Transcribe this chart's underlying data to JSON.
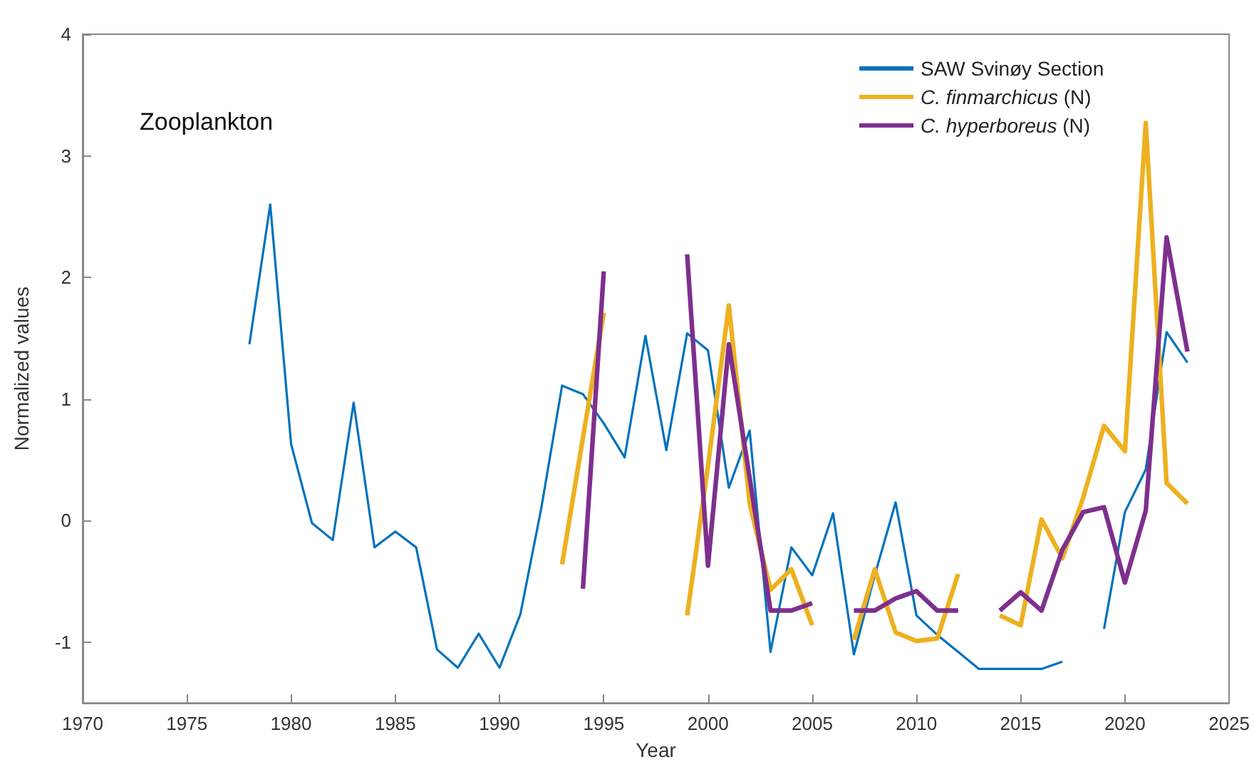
{
  "chart_data": {
    "type": "line",
    "title": "Zooplankton",
    "xlabel": "Year",
    "ylabel": "Normalized values",
    "x": [
      1978,
      1979,
      1980,
      1981,
      1982,
      1983,
      1984,
      1985,
      1986,
      1987,
      1988,
      1989,
      1990,
      1991,
      1992,
      1993,
      1994,
      1995,
      1996,
      1997,
      1998,
      1999,
      2000,
      2001,
      2002,
      2003,
      2004,
      2005,
      2006,
      2007,
      2008,
      2009,
      2010,
      2011,
      2012,
      2013,
      2014,
      2015,
      2016,
      2017,
      2018,
      2019,
      2020,
      2021,
      2022,
      2023
    ],
    "series": [
      {
        "name": "SAW Svinøy Section",
        "color": "#0072bd",
        "values": [
          1.45,
          2.6,
          0.63,
          -0.02,
          -0.16,
          0.97,
          -0.22,
          -0.09,
          -0.22,
          -1.06,
          -1.21,
          -0.93,
          -1.21,
          -0.77,
          0.1,
          1.11,
          1.04,
          0.8,
          0.52,
          1.52,
          0.58,
          1.54,
          1.4,
          0.27,
          0.74,
          -1.08,
          -0.22,
          -0.45,
          0.06,
          -1.1,
          -0.45,
          0.15,
          -0.78,
          -0.94,
          -1.08,
          -1.22,
          -1.22,
          -1.22,
          -1.22,
          -1.16,
          null,
          -0.89,
          0.07,
          0.42,
          1.55,
          1.3
        ]
      },
      {
        "name": "C. finmarchicus (N)",
        "color": "#edb120",
        "values": [
          null,
          null,
          null,
          null,
          null,
          null,
          null,
          null,
          null,
          null,
          null,
          null,
          null,
          null,
          null,
          -0.36,
          0.68,
          1.71,
          null,
          null,
          null,
          -0.78,
          0.45,
          1.77,
          0.14,
          -0.57,
          -0.4,
          -0.86,
          null,
          -0.98,
          -0.4,
          -0.92,
          -0.99,
          -0.97,
          -0.44,
          null,
          -0.78,
          -0.86,
          0.01,
          -0.31,
          0.19,
          0.78,
          0.57,
          3.27,
          0.31,
          0.14
        ]
      },
      {
        "name": "C. hyperboreus (N)",
        "color": "#7e2f8e",
        "values": [
          null,
          null,
          null,
          null,
          null,
          null,
          null,
          null,
          null,
          null,
          null,
          null,
          null,
          null,
          null,
          null,
          -0.56,
          2.05,
          null,
          null,
          null,
          2.19,
          -0.37,
          1.45,
          0.35,
          -0.74,
          -0.74,
          -0.68,
          null,
          -0.74,
          -0.74,
          -0.64,
          -0.58,
          -0.74,
          -0.74,
          null,
          -0.74,
          -0.59,
          -0.74,
          -0.24,
          0.07,
          0.11,
          -0.51,
          0.08,
          2.33,
          1.39
        ]
      }
    ],
    "xlim": [
      1970,
      2025
    ],
    "xticks": [
      1970,
      1975,
      1980,
      1985,
      1990,
      1995,
      2000,
      2005,
      2010,
      2015,
      2020,
      2025
    ],
    "ylim": [
      -1.5,
      4
    ],
    "yticks": [
      -1,
      0,
      1,
      2,
      3,
      4
    ],
    "grid": false,
    "legend": "top right",
    "marker": "none",
    "line_style": "solid"
  }
}
